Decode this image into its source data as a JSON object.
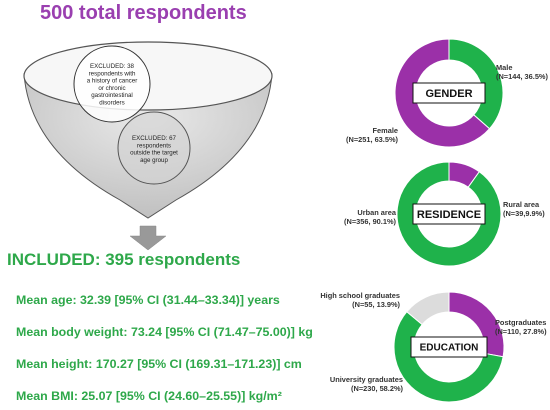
{
  "header": {
    "total": "500 total  respondents"
  },
  "funnel": {
    "excluded_1": [
      "EXCLUDED: 38",
      "respondents with",
      "a history of cancer",
      "or chronic",
      "gastrointestinal",
      "disorders"
    ],
    "excluded_2": [
      "EXCLUDED: 67",
      "respondents",
      "outside the target",
      "age group"
    ]
  },
  "included": "INCLUDED: 395 respondents",
  "stats": {
    "age": "Mean age: 32.39 [95% CI (31.44–33.34)] years",
    "weight": "Mean body weight: 73.24 [95% CI (71.47–75.00)] kg",
    "height": "Mean height: 170.27 [95% CI (169.31–171.23)] cm",
    "bmi": "Mean BMI: 25.07 [95% CI (24.60–25.55)] kg/m²"
  },
  "colors": {
    "purple": "#9b30a8",
    "green": "#1fb24b",
    "grey": "#dcdcdc",
    "title_purple": "#9a3fb0",
    "text_green": "#2ea84a"
  },
  "charts": {
    "gender": {
      "center": "GENDER",
      "slices": [
        {
          "name": "Male",
          "value": 36.5,
          "color": "#1fb24b",
          "label": [
            "Male",
            "(N=144, 36.5%)"
          ]
        },
        {
          "name": "Female",
          "value": 63.5,
          "color": "#9b30a8",
          "label": [
            "Female",
            "(N=251, 63.5%)"
          ]
        }
      ]
    },
    "residence": {
      "center": "RESIDENCE",
      "slices": [
        {
          "name": "Rural area",
          "value": 9.9,
          "color": "#9b30a8",
          "label": [
            "Rural area",
            "(N=39,9.9%)"
          ]
        },
        {
          "name": "Urban area",
          "value": 90.1,
          "color": "#1fb24b",
          "label": [
            "Urban area",
            "(N=356, 90.1%)"
          ]
        }
      ]
    },
    "education": {
      "center": "EDUCATION",
      "slices": [
        {
          "name": "Postgraduates",
          "value": 27.8,
          "color": "#9b30a8",
          "label": [
            "Postgraduates",
            "(N=110, 27.8%)"
          ]
        },
        {
          "name": "University graduates",
          "value": 58.2,
          "color": "#1fb24b",
          "label": [
            "University graduates",
            "(N=230, 58.2%)"
          ]
        },
        {
          "name": "High school graduates",
          "value": 13.9,
          "color": "#dcdcdc",
          "label": [
            "High school graduates",
            "(N=55, 13.9%)"
          ]
        }
      ]
    }
  }
}
